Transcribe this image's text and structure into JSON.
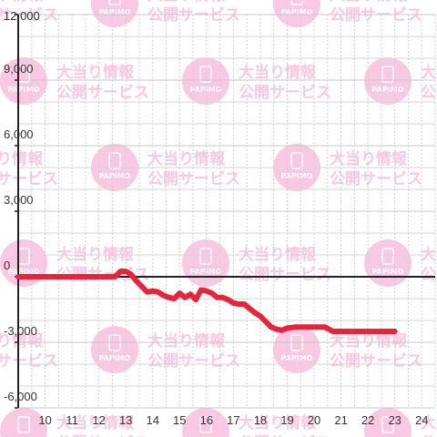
{
  "watermark": {
    "logo_text": "PAPIMO",
    "line1": "大当り情報",
    "line2": "公開サービス",
    "color": "#f9c8e2"
  },
  "chart_data": {
    "type": "line",
    "title": "",
    "xlabel": "",
    "ylabel": "",
    "x_ticks": [
      10,
      11,
      12,
      13,
      14,
      15,
      16,
      17,
      18,
      19,
      20,
      21,
      22,
      23,
      24
    ],
    "y_ticks": [
      -6000,
      -3000,
      0,
      3000,
      6000,
      9000,
      12000
    ],
    "y_tick_labels": [
      "-6,000",
      "-3,000",
      "0",
      "3,000",
      "6,000",
      "9,000",
      "12,000"
    ],
    "xlim": [
      9,
      24.5
    ],
    "ylim": [
      -6000,
      12000
    ],
    "grid": true,
    "line_color": "#e8243c",
    "series": [
      {
        "x": [
          9,
          12.6,
          12.8,
          13.0,
          13.2,
          13.4,
          13.6,
          13.8,
          14.0,
          14.2,
          14.4,
          14.6,
          14.8,
          15.0,
          15.2,
          15.4,
          15.6,
          15.8,
          16.0,
          16.2,
          16.4,
          16.6,
          16.8,
          17.0,
          17.2,
          17.4,
          17.6,
          17.8,
          18.0,
          18.2,
          18.4,
          18.6,
          18.8,
          19.0,
          19.3,
          19.6,
          20.0,
          20.4,
          20.7,
          21.0,
          21.5,
          22.0,
          22.5,
          22.9,
          23.0
        ],
        "y": [
          0,
          0,
          250,
          250,
          100,
          -200,
          -450,
          -700,
          -650,
          -700,
          -850,
          -950,
          -1000,
          -750,
          -950,
          -800,
          -1050,
          -600,
          -650,
          -750,
          -950,
          -950,
          -1050,
          -1200,
          -1250,
          -1250,
          -1450,
          -1650,
          -1800,
          -2050,
          -2300,
          -2400,
          -2450,
          -2350,
          -2300,
          -2300,
          -2300,
          -2300,
          -2500,
          -2500,
          -2500,
          -2500,
          -2500,
          -2500,
          -2500
        ]
      }
    ]
  }
}
